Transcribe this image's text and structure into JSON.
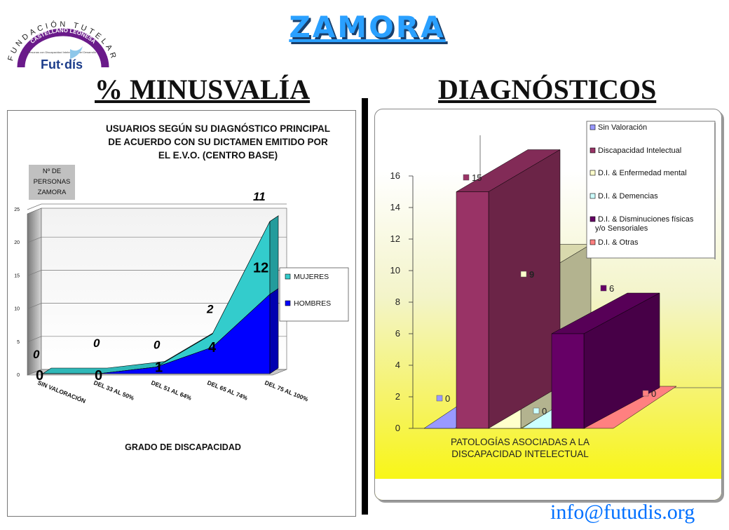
{
  "header": {
    "title": "ZAMORA",
    "logo": {
      "arc_text": "FUNDACIÓN TUTELAR",
      "ribbon_text": "CASTELLANO LEONESA",
      "small_text": "Personas con Discapacidad Intelectual o del Desarrollo",
      "brand": "Fut·dís"
    }
  },
  "sections": {
    "left_title": "% MINUSVALÍA",
    "right_title": "DIAGNÓSTICOS"
  },
  "contact": {
    "email": "info@futudis.org"
  },
  "colors": {
    "mujeres": "#33cccc",
    "hombres": "#0000ff",
    "title_blue": "#2aa0ff",
    "email_blue": "#0070ff"
  },
  "chart_data": [
    {
      "type": "area",
      "stacked": true,
      "three_d": true,
      "title": "USUARIOS SEGÚN SU DIAGNÓSTICO PRINCIPAL DE ACUERDO CON SU DICTAMEN EMITIDO POR EL E.V.O. (CENTRO BASE)",
      "title_lines": [
        "USUARIOS SEGÚN SU DIAGNÓSTICO PRINCIPAL",
        "DE ACUERDO CON SU DICTAMEN EMITIDO POR",
        "EL E.V.O. (CENTRO BASE)"
      ],
      "ylabel_lines": [
        "Nº DE",
        "PERSONAS",
        "ZAMORA"
      ],
      "xlabel": "GRADO DE DISCAPACIDAD",
      "categories": [
        "SIN VALORACIÓN",
        "DEL 33 AL 50%",
        "DEL 51 AL 64%",
        "DEL 65 AL 74%",
        "DEL 75 AL 100%"
      ],
      "series": [
        {
          "name": "HOMBRES",
          "values": [
            0,
            0,
            1,
            4,
            12
          ]
        },
        {
          "name": "MUJERES",
          "values": [
            0,
            0,
            0,
            2,
            11
          ]
        }
      ],
      "ylim": [
        0,
        25
      ],
      "yticks": [
        0,
        5,
        10,
        15,
        20,
        25
      ],
      "legend": "right",
      "grid": true
    },
    {
      "type": "bar",
      "three_d": true,
      "xlabel_lines": [
        "PATOLOGÍAS ASOCIADAS A LA",
        "DISCAPACIDAD INTELECTUAL"
      ],
      "series": [
        {
          "name": "Sin Valoración",
          "value": 0,
          "color": "#9999ff"
        },
        {
          "name": "Discapacidad Intelectual",
          "value": 15,
          "color": "#993366"
        },
        {
          "name": "D.I. & Enfermedad mental",
          "value": 9,
          "color": "#ffffcc"
        },
        {
          "name": "D.I. & Demencias",
          "value": 0,
          "color": "#ccffff"
        },
        {
          "name": "D.I. & Disminuciones físicas y/o Sensoriales",
          "name_lines": [
            "D.I. & Disminuciones físicas",
            "y/o Sensoriales"
          ],
          "value": 6,
          "color": "#660066"
        },
        {
          "name": "D.I. & Otras",
          "value": 0,
          "color": "#ff8080"
        }
      ],
      "ylim": [
        0,
        16
      ],
      "yticks": [
        0,
        2,
        4,
        6,
        8,
        10,
        12,
        14,
        16
      ],
      "legend": "top-right",
      "grid": false
    }
  ]
}
